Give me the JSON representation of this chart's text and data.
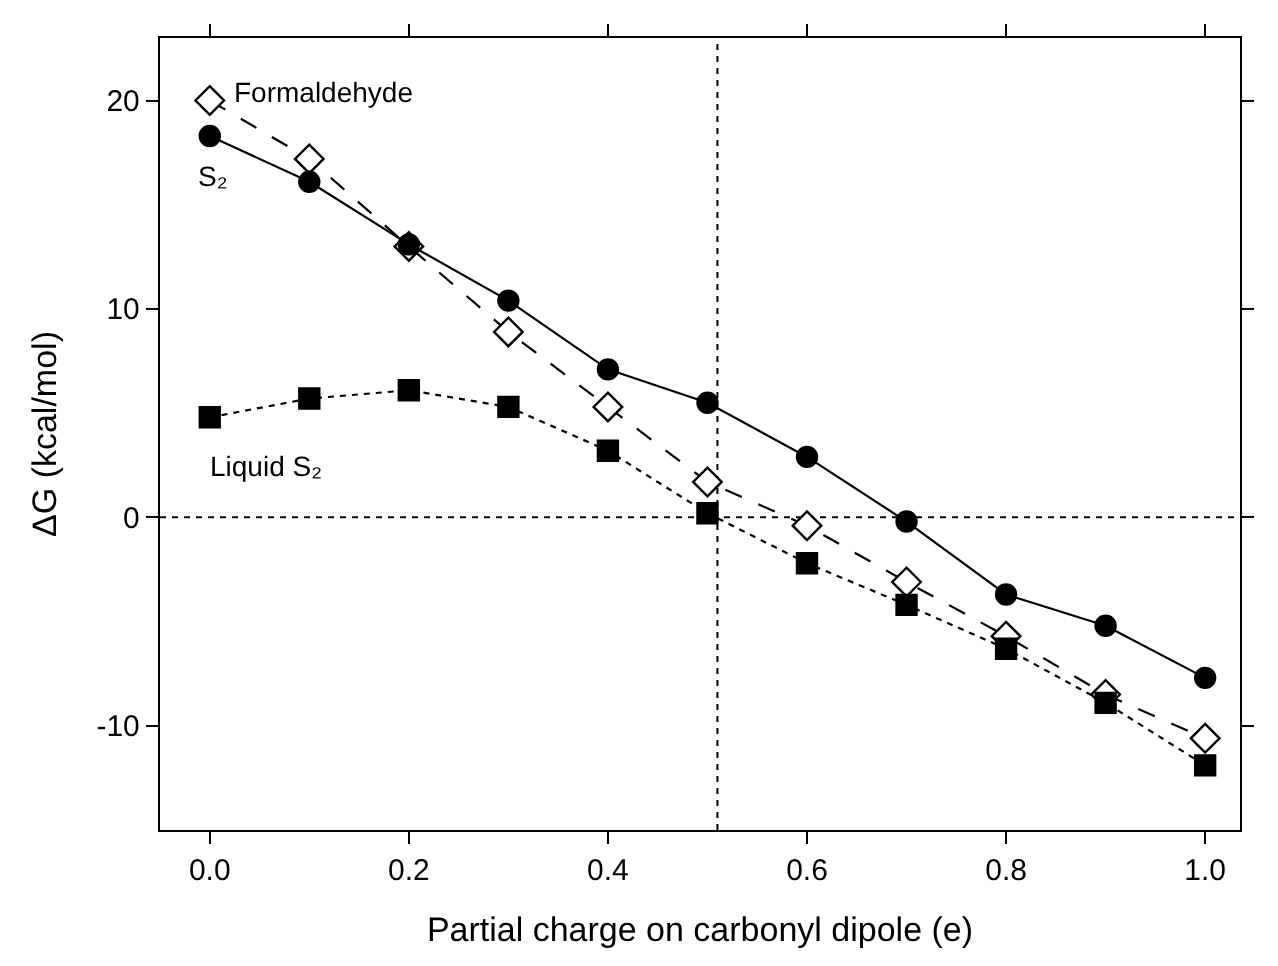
{
  "chart_data": {
    "type": "line",
    "xlabel": "Partial charge on carbonyl dipole (e)",
    "ylabel": "ΔG (kcal/mol)",
    "x": [
      0.0,
      0.1,
      0.2,
      0.3,
      0.4,
      0.5,
      0.6,
      0.7,
      0.8,
      0.9,
      1.0
    ],
    "series": [
      {
        "name": "Formaldehyde",
        "color": "#000000",
        "marker": "diamond",
        "line_style": "dashed",
        "values": [
          20.0,
          17.2,
          13.0,
          8.9,
          5.3,
          1.7,
          -0.4,
          -3.1,
          -5.7,
          -8.5,
          -10.6
        ]
      },
      {
        "name": "S₂",
        "color": "#000000",
        "marker": "circle",
        "line_style": "solid",
        "values": [
          18.3,
          16.1,
          13.1,
          10.4,
          7.1,
          5.5,
          2.9,
          -0.2,
          -3.7,
          -5.2,
          -7.7
        ]
      },
      {
        "name": "Liquid S₂",
        "color": "#000000",
        "marker": "square",
        "line_style": "dotted",
        "values": [
          4.8,
          5.7,
          6.1,
          5.3,
          3.2,
          0.2,
          -2.2,
          -4.2,
          -6.3,
          -8.9,
          -11.9
        ]
      }
    ],
    "xlim": [
      -0.05,
      1.035
    ],
    "ylim": [
      -15,
      23
    ],
    "xticks": [
      {
        "value": 0,
        "label": "0.0"
      },
      {
        "value": 0.2,
        "label": "0.2"
      },
      {
        "value": 0.4,
        "label": "0.4"
      },
      {
        "value": 0.6,
        "label": "0.6"
      },
      {
        "value": 0.8,
        "label": "0.8"
      },
      {
        "value": 1,
        "label": "1.0"
      }
    ],
    "yticks": [
      -10,
      0,
      10,
      20
    ],
    "ref_lines": [
      {
        "axis": "x",
        "value": 0.51,
        "line_style": "dotted",
        "color": "#000000"
      },
      {
        "axis": "y",
        "value": 0,
        "line_style": "dotted",
        "color": "#000000"
      }
    ],
    "grid": false,
    "legend": false
  }
}
